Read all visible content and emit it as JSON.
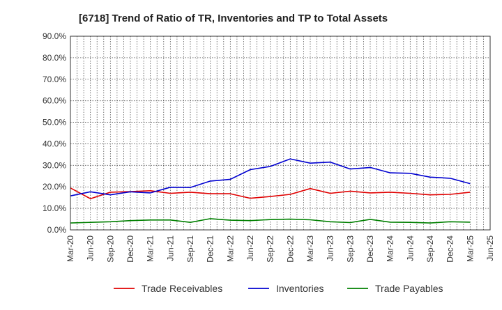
{
  "chart_data": {
    "type": "line",
    "title": "[6718]  Trend of Ratio of TR, Inventories and TP to Total Assets",
    "xlabel": "",
    "ylabel": "",
    "ylim": [
      0,
      90
    ],
    "y_ticks": [
      "0.0%",
      "10.0%",
      "20.0%",
      "30.0%",
      "40.0%",
      "50.0%",
      "60.0%",
      "70.0%",
      "80.0%",
      "90.0%"
    ],
    "x_tick_labels": [
      "Mar-20",
      "Jun-20",
      "Sep-20",
      "Dec-20",
      "Mar-21",
      "Jun-21",
      "Sep-21",
      "Dec-21",
      "Mar-22",
      "Jun-22",
      "Sep-22",
      "Dec-22",
      "Mar-23",
      "Jun-23",
      "Sep-23",
      "Dec-23",
      "Mar-24",
      "Jun-24",
      "Sep-24",
      "Dec-24",
      "Mar-25",
      "Jun-25"
    ],
    "categories": [
      "Mar-20",
      "Jun-20",
      "Sep-20",
      "Dec-20",
      "Mar-21",
      "Jun-21",
      "Sep-21",
      "Dec-21",
      "Mar-22",
      "Jun-22",
      "Sep-22",
      "Dec-22",
      "Mar-23",
      "Jun-23",
      "Sep-23",
      "Dec-23",
      "Mar-24",
      "Jun-24",
      "Sep-24",
      "Dec-24",
      "Mar-25"
    ],
    "grid": true,
    "legend_position": "bottom",
    "series": [
      {
        "name": "Trade Receivables",
        "color": "#e00000",
        "values": [
          19.5,
          14.5,
          17.5,
          17.8,
          18.2,
          17.0,
          17.5,
          16.8,
          16.8,
          14.7,
          15.5,
          16.5,
          19.2,
          17.0,
          18.0,
          17.2,
          17.5,
          17.0,
          16.3,
          16.5,
          17.5
        ]
      },
      {
        "name": "Inventories",
        "color": "#0000d0",
        "values": [
          15.8,
          17.7,
          16.3,
          17.7,
          17.2,
          19.8,
          19.7,
          22.7,
          23.5,
          28.0,
          29.5,
          33.0,
          31.0,
          31.5,
          28.3,
          29.0,
          26.5,
          26.3,
          24.5,
          24.0,
          21.5
        ]
      },
      {
        "name": "Trade Payables",
        "color": "#008000",
        "values": [
          3.2,
          3.5,
          3.8,
          4.3,
          4.6,
          4.6,
          3.5,
          5.2,
          4.5,
          4.3,
          4.8,
          5.0,
          4.7,
          3.8,
          3.4,
          4.9,
          3.6,
          3.5,
          3.2,
          3.8,
          3.6
        ]
      }
    ]
  }
}
